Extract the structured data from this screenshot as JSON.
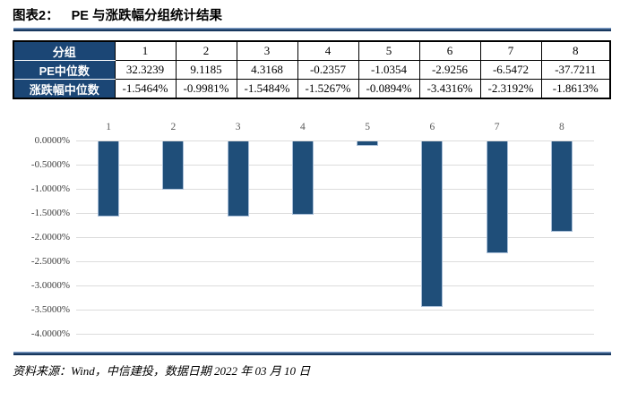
{
  "header": {
    "figure_label": "图表2：",
    "title": "PE 与涨跌幅分组统计结果"
  },
  "table": {
    "row_headers": [
      "分组",
      "PE中位数",
      "涨跌幅中位数"
    ],
    "groups": [
      "1",
      "2",
      "3",
      "4",
      "5",
      "6",
      "7",
      "8"
    ],
    "pe_median": [
      "32.3239",
      "9.1185",
      "4.3168",
      "-0.2357",
      "-1.0354",
      "-2.9256",
      "-6.5472",
      "-37.7211"
    ],
    "change_median": [
      "-1.5464%",
      "-0.9981%",
      "-1.5484%",
      "-1.5267%",
      "-0.0894%",
      "-3.4316%",
      "-2.3192%",
      "-1.8613%"
    ]
  },
  "chart_data": {
    "type": "bar",
    "categories": [
      "1",
      "2",
      "3",
      "4",
      "5",
      "6",
      "7",
      "8"
    ],
    "values": [
      -1.5464,
      -0.9981,
      -1.5484,
      -1.5267,
      -0.0894,
      -3.4316,
      -2.3192,
      -1.8613
    ],
    "title": "",
    "xlabel": "",
    "ylabel": "",
    "ylim": [
      -4.0,
      0.0
    ],
    "ytick_step": 0.5,
    "ytick_label_decimals": 4,
    "ytick_label_suffix": "%",
    "grid": "horizontal",
    "legend_position": "none",
    "bar_color": "#1F4E79"
  },
  "footer": {
    "source": "资料来源：Wind，中信建投，数据日期 2022 年 03 月 10 日"
  },
  "colors": {
    "accent_dark": "#17375E",
    "accent_light": "#7C9CC6",
    "table_header_bg": "#1B4675",
    "bar": "#1F4E79",
    "gridline": "#DCDCDC"
  }
}
